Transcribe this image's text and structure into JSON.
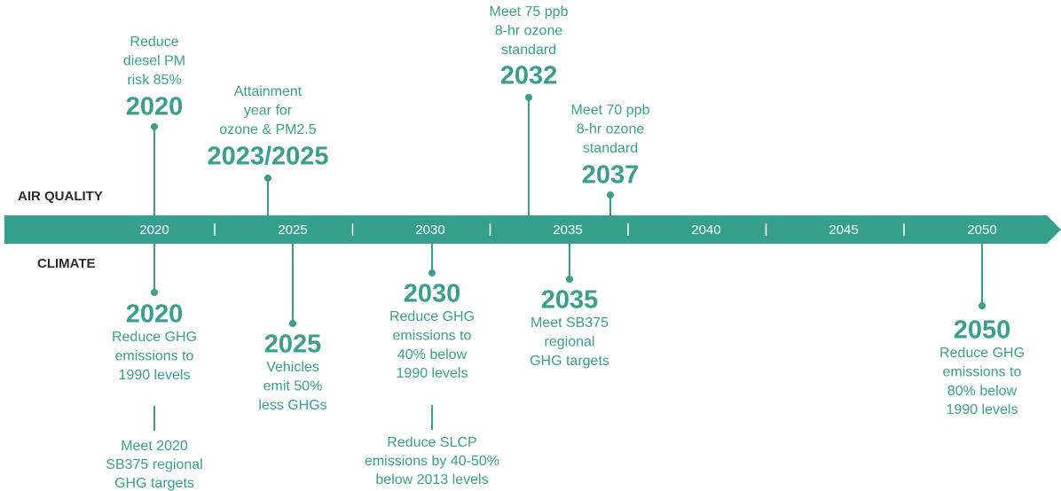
{
  "row_labels": {
    "air_quality": "AIR QUALITY",
    "climate": "CLIMATE"
  },
  "axis_years": [
    "2020",
    "2025",
    "2030",
    "2035",
    "2040",
    "2045",
    "2050"
  ],
  "air_quality_events": [
    {
      "year": "2020",
      "lines": [
        "Reduce",
        "diesel PM",
        "risk 85%"
      ]
    },
    {
      "year": "2023/2025",
      "lines": [
        "Attainment",
        "year for",
        "ozone & PM2.5"
      ]
    },
    {
      "year": "2032",
      "lines": [
        "Meet 75 ppb",
        "8-hr ozone",
        "standard"
      ]
    },
    {
      "year": "2037",
      "lines": [
        "Meet 70 ppb",
        "8-hr ozone",
        "standard"
      ]
    }
  ],
  "climate_events": [
    {
      "year": "2020",
      "lines": [
        "Reduce GHG",
        "emissions to",
        "1990 levels"
      ],
      "extra_lines": [
        "Meet 2020",
        "SB375 regional",
        "GHG targets"
      ]
    },
    {
      "year": "2025",
      "lines": [
        "Vehicles",
        "emit 50%",
        "less GHGs"
      ]
    },
    {
      "year": "2030",
      "lines": [
        "Reduce GHG",
        "emissions to",
        "40% below",
        "1990 levels"
      ],
      "extra_lines": [
        "Reduce SLCP",
        "emissions by 40-50%",
        "below 2013 levels"
      ]
    },
    {
      "year": "2035",
      "lines": [
        "Meet SB375",
        "regional",
        "GHG targets"
      ]
    },
    {
      "year": "2050",
      "lines": [
        "Reduce GHG",
        "emissions to",
        "80% below",
        "1990 levels"
      ]
    }
  ]
}
